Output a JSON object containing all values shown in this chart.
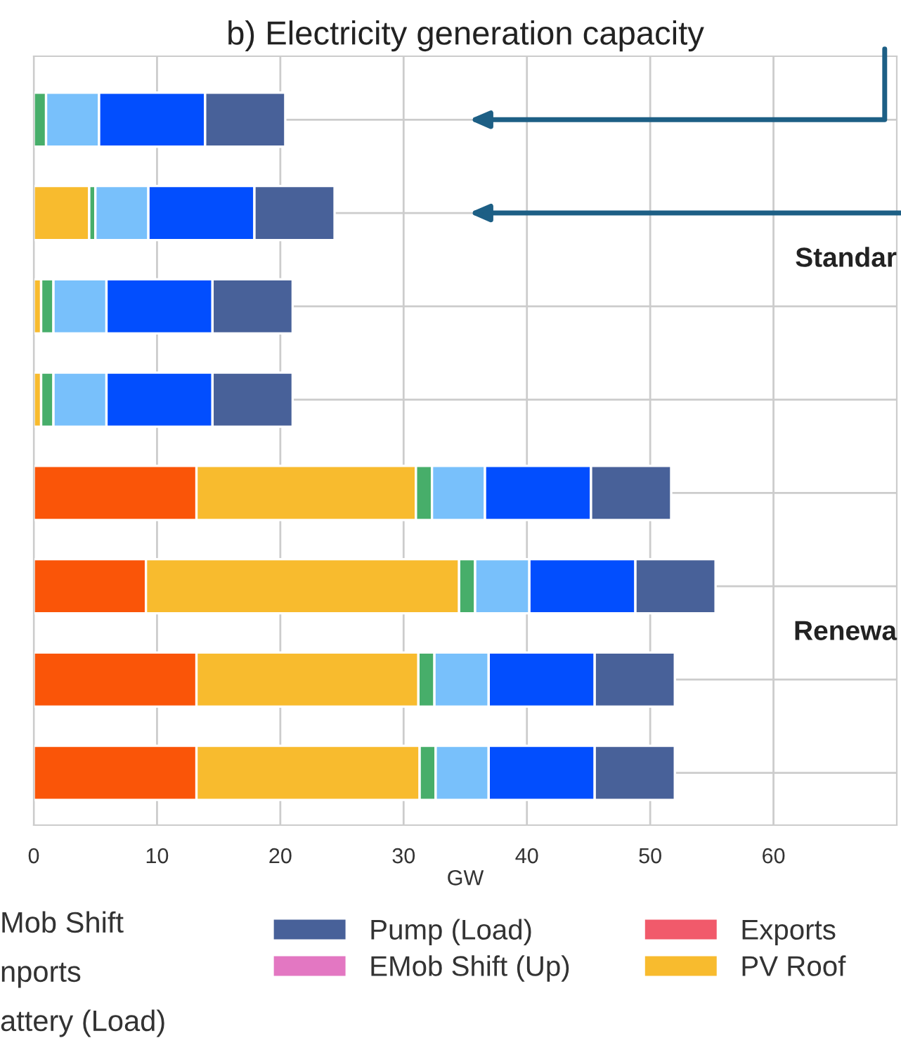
{
  "chart_data": {
    "type": "bar",
    "orientation": "horizontal",
    "stacked": true,
    "title": "b) Electricity generation capacity",
    "xlabel": "GW",
    "categories": [
      null,
      null,
      null,
      null,
      null,
      null,
      null,
      null
    ],
    "series": [
      {
        "color": "#fa5508",
        "values": [
          0,
          0,
          0,
          0,
          13.2,
          9.1,
          13.2,
          13.2
        ]
      },
      {
        "name": "PV Roof",
        "color": "#f8bb2e",
        "values": [
          0,
          4.5,
          0.6,
          0.6,
          17.8,
          25.4,
          18.0,
          18.1
        ]
      },
      {
        "color": "#47ae6a",
        "values": [
          1.0,
          0.5,
          1.0,
          1.0,
          1.3,
          1.3,
          1.3,
          1.3
        ]
      },
      {
        "color": "#78c0fb",
        "values": [
          4.3,
          4.3,
          4.3,
          4.3,
          4.3,
          4.4,
          4.4,
          4.3
        ]
      },
      {
        "color": "#024efe",
        "values": [
          8.6,
          8.6,
          8.6,
          8.6,
          8.6,
          8.6,
          8.6,
          8.6
        ]
      },
      {
        "name": "Pump (Load)",
        "color": "#486199",
        "values": [
          6.5,
          6.5,
          6.5,
          6.5,
          6.5,
          6.5,
          6.5,
          6.5
        ]
      },
      {
        "name": "EMob Shift (Up)",
        "color": "#e377c2",
        "values": [
          0,
          0,
          0,
          0,
          0,
          0,
          0,
          0
        ]
      },
      {
        "name": "Exports",
        "color": "#f15a6b",
        "values": [
          0,
          0,
          0,
          0,
          0,
          0,
          0,
          0
        ]
      }
    ],
    "xlim": [
      0,
      70
    ],
    "xticks": [
      0,
      10,
      20,
      30,
      40,
      50,
      60
    ],
    "grid": true,
    "legend": "bottom",
    "annotations": [
      "Standar",
      "Renewa",
      "Mob Shift",
      "nports",
      "attery (Load)"
    ]
  }
}
